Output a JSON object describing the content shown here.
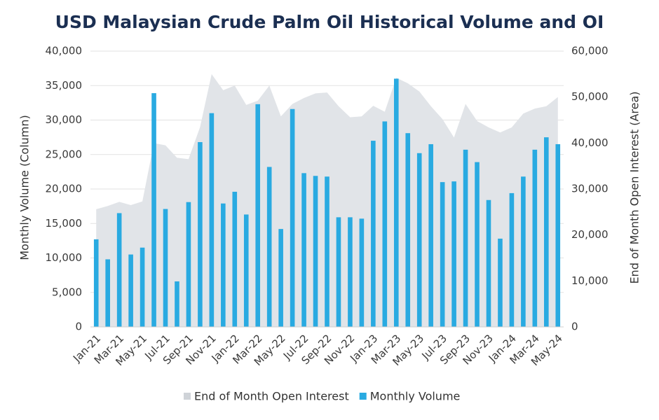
{
  "chart_data": {
    "type": "bar",
    "title": "USD Malaysian Crude Palm Oil Historical Volume and OI",
    "y_label": "Monthly Volume (Column)",
    "y2_label": "End of Month Open Interest (Area)",
    "categories": [
      "Jan-21",
      null,
      "Mar-21",
      null,
      "May-21",
      null,
      "Jul-21",
      null,
      "Sep-21",
      null,
      "Nov-21",
      null,
      "Jan-22",
      null,
      "Mar-22",
      null,
      "May-22",
      null,
      "Jul-22",
      null,
      "Sep-22",
      null,
      "Nov-22",
      null,
      "Jan-23",
      null,
      "Mar-23",
      null,
      "May-23",
      null,
      "Jul-23",
      null,
      "Sep-23",
      null,
      "Nov-23",
      null,
      "Jan-24",
      null,
      "Mar-24",
      null,
      "May-24"
    ],
    "series": [
      {
        "name": "End of Month Open Interest",
        "type": "area",
        "axis": "y2",
        "color": "#e1e4e8",
        "values": [
          25600,
          26300,
          27200,
          26500,
          27300,
          40000,
          39500,
          36800,
          36500,
          43500,
          55000,
          51500,
          52500,
          48300,
          49200,
          52500,
          45800,
          48500,
          49800,
          50800,
          51000,
          48000,
          45600,
          45800,
          48100,
          46800,
          54200,
          53000,
          51200,
          48000,
          45200,
          41200,
          48500,
          44800,
          43400,
          42300,
          43400,
          46400,
          47500,
          48000,
          50000
        ]
      },
      {
        "name": "Monthly Volume",
        "type": "bar",
        "color": "#29aae1",
        "values": [
          12700,
          9800,
          16500,
          10500,
          11500,
          33900,
          17100,
          6600,
          18100,
          26800,
          31000,
          17900,
          19600,
          16300,
          32300,
          23200,
          14200,
          31600,
          22300,
          21900,
          21800,
          15900,
          15900,
          15700,
          27000,
          29800,
          36000,
          28100,
          25200,
          26500,
          21000,
          21100,
          25700,
          23900,
          18400,
          12800,
          19400,
          21800,
          25700,
          27500,
          26500
        ]
      }
    ],
    "ylim": [
      0,
      40000
    ],
    "yticks": [
      0,
      {
        "value": 5000,
        "label": "5,000"
      },
      {
        "value": 10000,
        "label": "10,000"
      },
      {
        "value": 15000,
        "label": "15,000"
      },
      {
        "value": 20000,
        "label": "20,000"
      },
      {
        "value": 25000,
        "label": "25,000"
      },
      {
        "value": 30000,
        "label": "30,000"
      },
      {
        "value": 35000,
        "label": "35,000"
      },
      {
        "value": 40000,
        "label": "40,000"
      }
    ],
    "y2lim": [
      0,
      60000
    ],
    "y2ticks": [
      0,
      {
        "value": 10000,
        "label": "10,000"
      },
      {
        "value": 20000,
        "label": "20,000"
      },
      {
        "value": 30000,
        "label": "30,000"
      },
      {
        "value": 40000,
        "label": "40,000"
      },
      {
        "value": 50000,
        "label": "50,000"
      },
      {
        "value": 60000,
        "label": "60,000"
      }
    ],
    "grid": true,
    "legend": "bottom"
  }
}
